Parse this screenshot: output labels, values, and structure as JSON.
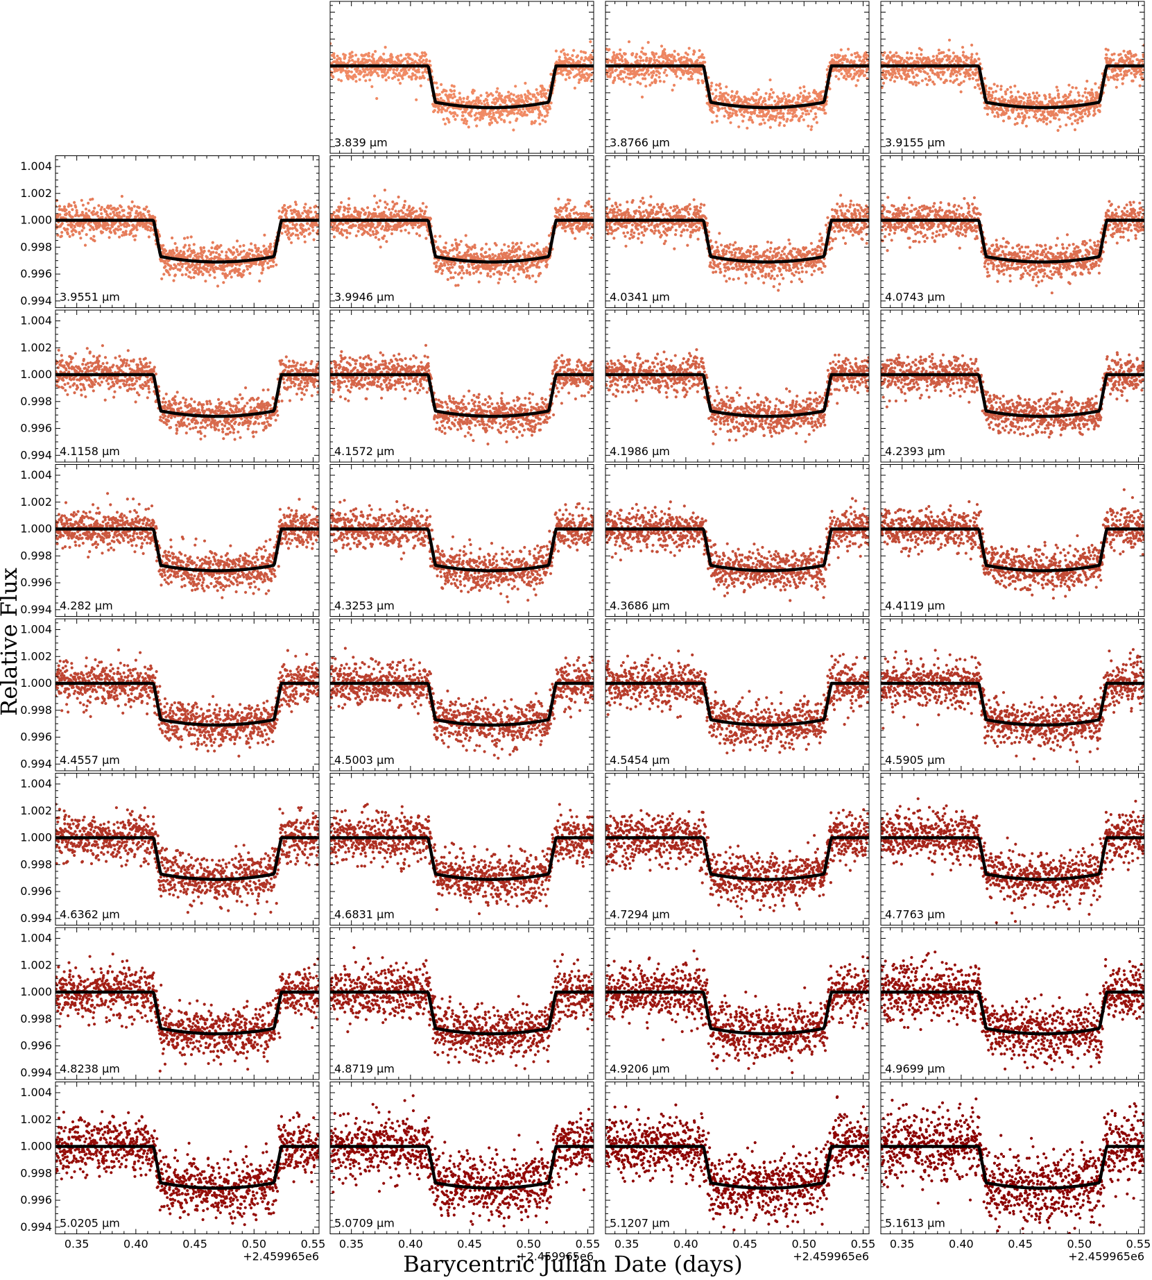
{
  "chart_data": {
    "type": "scatter",
    "layout": {
      "rows": 8,
      "cols": 4,
      "first_row_empty_slots": 1
    },
    "xlabel": "Barycentric Julian Date (days)",
    "ylabel": "Relative Flux",
    "x_offset_label": "+2.459965e6",
    "xlim": [
      0.332,
      0.555
    ],
    "ylim": [
      0.9935,
      1.0048
    ],
    "xticks": [
      0.35,
      0.4,
      0.45,
      0.5,
      0.55
    ],
    "xtick_labels": [
      "0.35",
      "0.40",
      "0.45",
      "0.50",
      "0.55"
    ],
    "yticks": [
      0.994,
      0.996,
      0.998,
      1.0,
      1.002,
      1.004
    ],
    "ytick_labels": [
      "0.994",
      "0.996",
      "0.998",
      "1.000",
      "1.002",
      "1.004"
    ],
    "transit_model": {
      "baseline": 1.0,
      "ingress_start": 0.415,
      "ingress_end": 0.421,
      "egress_start": 0.517,
      "egress_end": 0.523,
      "depth_at_contact": 0.9973,
      "depth_at_center": 0.9969,
      "line_color": "#000000"
    },
    "point_color_start": "#f08a64",
    "point_color_end": "#8b0000",
    "panels": [
      {
        "label": "3.839 μm",
        "scatter": 0.0006
      },
      {
        "label": "3.8766 μm",
        "scatter": 0.0006
      },
      {
        "label": "3.9155 μm",
        "scatter": 0.0006
      },
      {
        "label": "3.9551 μm",
        "scatter": 0.00062
      },
      {
        "label": "3.9946 μm",
        "scatter": 0.00062
      },
      {
        "label": "4.0341 μm",
        "scatter": 0.00062
      },
      {
        "label": "4.0743 μm",
        "scatter": 0.00064
      },
      {
        "label": "4.1158 μm",
        "scatter": 0.00066
      },
      {
        "label": "4.1572 μm",
        "scatter": 0.00066
      },
      {
        "label": "4.1986 μm",
        "scatter": 0.00068
      },
      {
        "label": "4.2393 μm",
        "scatter": 0.0007
      },
      {
        "label": "4.282 μm",
        "scatter": 0.0007
      },
      {
        "label": "4.3253 μm",
        "scatter": 0.00072
      },
      {
        "label": "4.3686 μm",
        "scatter": 0.00074
      },
      {
        "label": "4.4119 μm",
        "scatter": 0.00076
      },
      {
        "label": "4.4557 μm",
        "scatter": 0.00078
      },
      {
        "label": "4.5003 μm",
        "scatter": 0.0008
      },
      {
        "label": "4.5454 μm",
        "scatter": 0.00082
      },
      {
        "label": "4.5905 μm",
        "scatter": 0.00084
      },
      {
        "label": "4.6362 μm",
        "scatter": 0.00088
      },
      {
        "label": "4.6831 μm",
        "scatter": 0.0009
      },
      {
        "label": "4.7294 μm",
        "scatter": 0.00092
      },
      {
        "label": "4.7763 μm",
        "scatter": 0.00094
      },
      {
        "label": "4.8238 μm",
        "scatter": 0.00096
      },
      {
        "label": "4.8719 μm",
        "scatter": 0.00098
      },
      {
        "label": "4.9206 μm",
        "scatter": 0.001
      },
      {
        "label": "4.9699 μm",
        "scatter": 0.00104
      },
      {
        "label": "5.0205 μm",
        "scatter": 0.00108
      },
      {
        "label": "5.0709 μm",
        "scatter": 0.00112
      },
      {
        "label": "5.1207 μm",
        "scatter": 0.00116
      },
      {
        "label": "5.1613 μm",
        "scatter": 0.00135
      }
    ]
  }
}
